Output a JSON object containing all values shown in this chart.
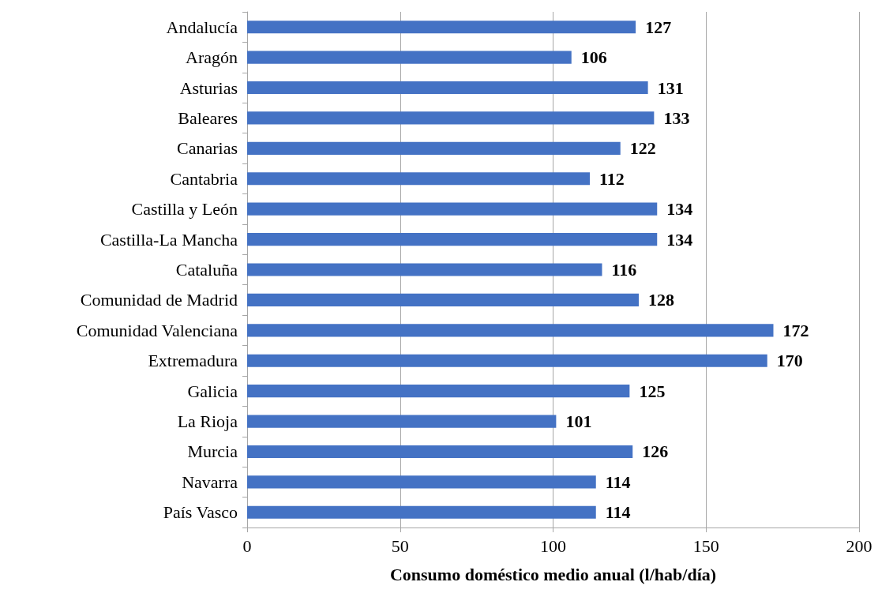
{
  "chart_data": {
    "type": "bar",
    "orientation": "horizontal",
    "categories": [
      "Andalucía",
      "Aragón",
      "Asturias",
      "Baleares",
      "Canarias",
      "Cantabria",
      "Castilla y León",
      "Castilla-La Mancha",
      "Cataluña",
      "Comunidad de Madrid",
      "Comunidad Valenciana",
      "Extremadura",
      "Galicia",
      "La Rioja",
      "Murcia",
      "Navarra",
      "País Vasco"
    ],
    "values": [
      127,
      106,
      131,
      133,
      122,
      112,
      134,
      134,
      116,
      128,
      172,
      170,
      125,
      101,
      126,
      114,
      114
    ],
    "color": "#4472c4",
    "xlabel": "Consumo doméstico medio anual (l/hab/día)",
    "xlim": [
      0,
      200
    ],
    "xticks": [
      0,
      50,
      100,
      150,
      200
    ],
    "grid": "x",
    "data_labels": true
  }
}
